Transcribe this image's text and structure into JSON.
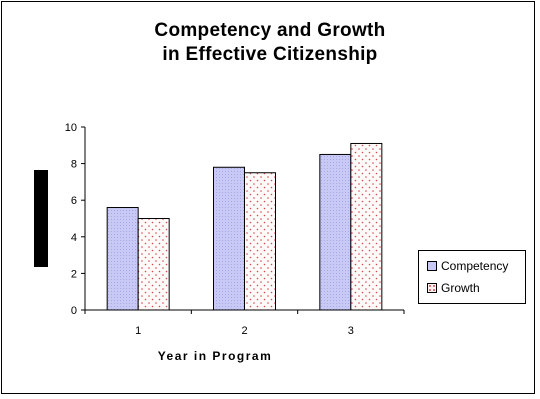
{
  "chart_data": {
    "type": "bar",
    "title": "Competency and Growth in Effective Citizenship",
    "title_lines": [
      "Competency and Growth",
      "in Effective Citizenship"
    ],
    "xlabel": "Year in Program",
    "ylabel": "",
    "categories": [
      "1",
      "2",
      "3"
    ],
    "series": [
      {
        "name": "Competency",
        "values": [
          5.6,
          7.8,
          8.5
        ],
        "color": "#c9c9f5"
      },
      {
        "name": "Growth",
        "values": [
          5.0,
          7.5,
          9.1
        ],
        "color": "#f7e0e0"
      }
    ],
    "ylim": [
      0,
      10
    ],
    "yticks": [
      0,
      2,
      4,
      6,
      8,
      10
    ],
    "grid": false,
    "legend_position": "right"
  }
}
